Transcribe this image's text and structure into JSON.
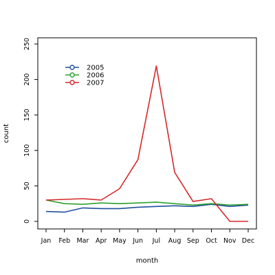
{
  "chart_data": {
    "type": "line",
    "xlabel": "month",
    "ylabel": "count",
    "categories": [
      "Jan",
      "Feb",
      "Mar",
      "Apr",
      "May",
      "Jun",
      "Jul",
      "Aug",
      "Sep",
      "Oct",
      "Nov",
      "Dec"
    ],
    "ylim": [
      0,
      250
    ],
    "yticks": [
      0,
      50,
      100,
      150,
      200,
      250
    ],
    "grid": false,
    "legend_position": "top-left",
    "series": [
      {
        "name": "2005",
        "color": "#1f4e9c",
        "values": [
          14,
          13,
          19,
          18,
          18,
          20,
          21,
          22,
          21,
          24,
          21,
          23
        ]
      },
      {
        "name": "2006",
        "color": "#2ca02c",
        "values": [
          30,
          25,
          24,
          26,
          25,
          26,
          27,
          25,
          23,
          25,
          23,
          24
        ]
      },
      {
        "name": "2007",
        "color": "#d62728",
        "values": [
          30,
          31,
          32,
          30,
          46,
          87,
          219,
          69,
          28,
          32,
          0,
          0
        ]
      }
    ]
  }
}
